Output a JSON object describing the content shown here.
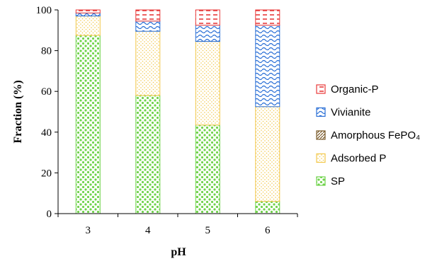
{
  "chart_data": {
    "type": "bar",
    "stacked": true,
    "categories": [
      "3",
      "4",
      "5",
      "6"
    ],
    "xlabel": "pH",
    "ylabel": "Fraction (%)",
    "ylim": [
      0,
      100
    ],
    "yticks": [
      0,
      20,
      40,
      60,
      80,
      100
    ],
    "grid": false,
    "legend_position": "right",
    "series": [
      {
        "name": "SP",
        "color": "#6fd34a",
        "pattern": "dots",
        "values": [
          87.5,
          58,
          43.5,
          6
        ]
      },
      {
        "name": "Adsorbed P",
        "color": "#f2c84b",
        "pattern": "fine-dots",
        "values": [
          9.5,
          31.5,
          41,
          46.5
        ]
      },
      {
        "name": "Amorphous FePO₄",
        "color": "#7a5a2a",
        "pattern": "diagonal",
        "values": [
          0,
          0,
          0,
          0
        ]
      },
      {
        "name": "Vivianite",
        "color": "#2a6fd6",
        "pattern": "waves",
        "values": [
          1.5,
          5,
          8,
          40
        ]
      },
      {
        "name": "Organic-P",
        "color": "#e83a3a",
        "pattern": "dashes",
        "values": [
          1.5,
          5.5,
          7.5,
          7.5
        ]
      }
    ]
  }
}
